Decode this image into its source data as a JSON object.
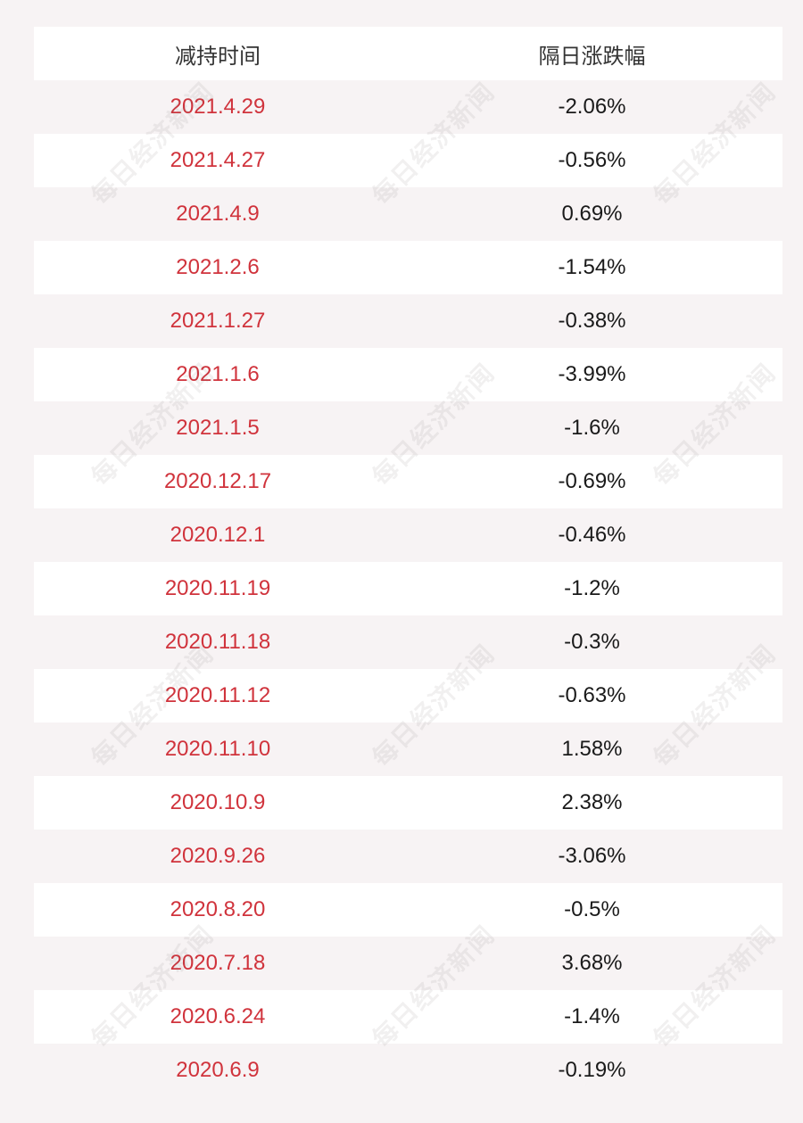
{
  "table": {
    "headers": [
      "减持时间",
      "隔日涨跌幅"
    ],
    "rows": [
      [
        "2021.4.29",
        "-2.06%"
      ],
      [
        "2021.4.27",
        "-0.56%"
      ],
      [
        "2021.4.9",
        "0.69%"
      ],
      [
        "2021.2.6",
        "-1.54%"
      ],
      [
        "2021.1.27",
        "-0.38%"
      ],
      [
        "2021.1.6",
        "-3.99%"
      ],
      [
        "2021.1.5",
        "-1.6%"
      ],
      [
        "2020.12.17",
        "-0.69%"
      ],
      [
        "2020.12.1",
        "-0.46%"
      ],
      [
        "2020.11.19",
        "-1.2%"
      ],
      [
        "2020.11.18",
        "-0.3%"
      ],
      [
        "2020.11.12",
        "-0.63%"
      ],
      [
        "2020.11.10",
        "1.58%"
      ],
      [
        "2020.10.9",
        "2.38%"
      ],
      [
        "2020.9.26",
        "-3.06%"
      ],
      [
        "2020.8.20",
        "-0.5%"
      ],
      [
        "2020.7.18",
        "3.68%"
      ],
      [
        "2020.6.24",
        "-1.4%"
      ],
      [
        "2020.6.9",
        "-0.19%"
      ]
    ]
  },
  "watermark": {
    "text": "每日经济新闻"
  },
  "colors": {
    "background": "#f7f3f4",
    "row_white": "#ffffff",
    "date_text": "#d0333c",
    "value_text": "#1a1a1a"
  }
}
